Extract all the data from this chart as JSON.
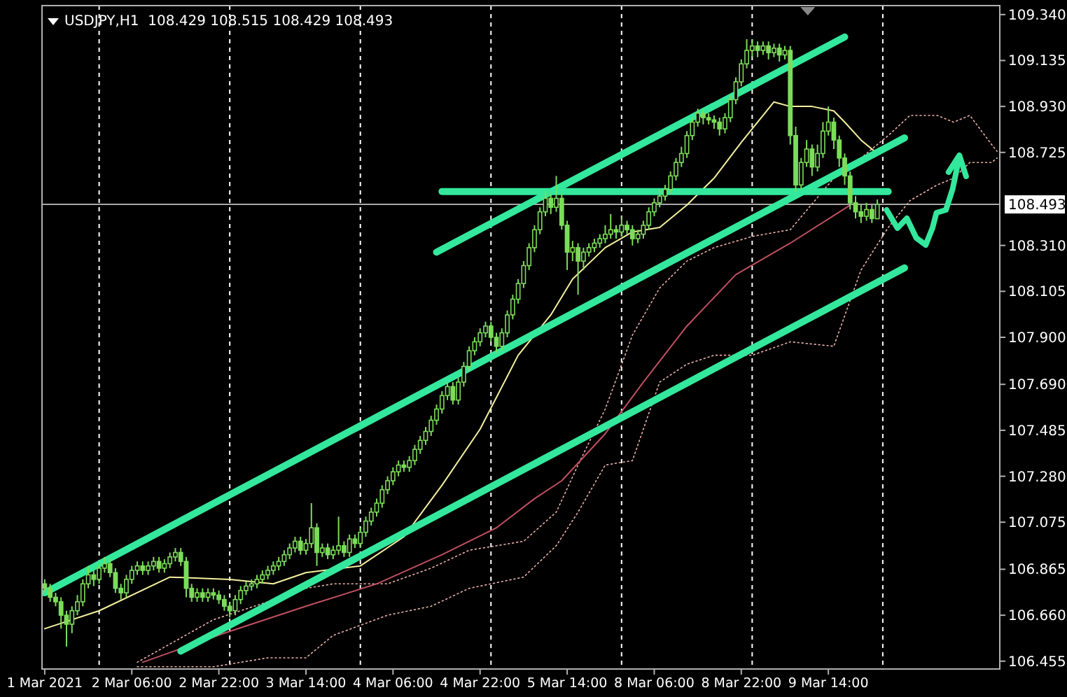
{
  "chart_data": {
    "type": "candlestick",
    "title": "USDJPY,H1  108.429 108.515 108.429 108.493",
    "color": "#7cdc5a",
    "categories": [
      "1 Mar 2021",
      null,
      null,
      null,
      null,
      null,
      null,
      null,
      null,
      null,
      null,
      null,
      null,
      null,
      null,
      null,
      "2 Mar 06:00",
      null,
      null,
      null,
      null,
      null,
      null,
      null,
      null,
      null,
      null,
      null,
      null,
      null,
      null,
      null,
      "2 Mar 22:00",
      null,
      null,
      null,
      null,
      null,
      null,
      null,
      null,
      null,
      null,
      null,
      null,
      null,
      null,
      null,
      "3 Mar 14:00",
      null,
      null,
      null,
      null,
      null,
      null,
      null,
      null,
      null,
      null,
      null,
      null,
      null,
      null,
      null,
      "4 Mar 06:00",
      null,
      null,
      null,
      null,
      null,
      null,
      null,
      null,
      null,
      null,
      null,
      null,
      null,
      null,
      null,
      "4 Mar 22:00",
      null,
      null,
      null,
      null,
      null,
      null,
      null,
      null,
      null,
      null,
      null,
      null,
      null,
      null,
      null,
      "5 Mar 14:00",
      null,
      null,
      null,
      null,
      null,
      null,
      null,
      null,
      null,
      null,
      null,
      null,
      null,
      null,
      null,
      "8 Mar 06:00",
      null,
      null,
      null,
      null,
      null,
      null,
      null,
      null,
      null,
      null,
      null,
      null,
      null,
      null,
      null,
      "8 Mar 22:00",
      null,
      null,
      null,
      null,
      null,
      null,
      null,
      null,
      null,
      null,
      null,
      null,
      null,
      null,
      null,
      "9 Mar 14:00",
      null,
      null,
      null,
      null,
      null,
      null,
      null,
      null,
      null,
      null,
      null,
      null,
      null,
      null,
      null,
      null,
      null,
      null,
      null,
      null,
      null,
      null,
      null,
      null,
      null,
      null,
      null,
      null,
      null,
      null,
      null
    ],
    "ylim": [
      106.42,
      109.38
    ],
    "yticks": [
      {
        "value": 109.34,
        "label": "109.340"
      },
      {
        "value": 109.135,
        "label": "109.135"
      },
      {
        "value": 108.93,
        "label": "108.930"
      },
      {
        "value": 108.725,
        "label": "108.725"
      },
      {
        "value": 108.31,
        "label": "108.310"
      },
      {
        "value": 108.105,
        "label": "108.105"
      },
      {
        "value": 107.9,
        "label": "107.900"
      },
      {
        "value": 107.69,
        "label": "107.690"
      },
      {
        "value": 107.485,
        "label": "107.485"
      },
      {
        "value": 107.28,
        "label": "107.280"
      },
      {
        "value": 107.075,
        "label": "107.075"
      },
      {
        "value": 106.865,
        "label": "106.865"
      },
      {
        "value": 106.66,
        "label": "106.660"
      },
      {
        "value": 106.455,
        "label": "106.455"
      }
    ],
    "ohlc": [
      [
        106.8,
        106.82,
        106.76,
        106.78
      ],
      [
        106.78,
        106.8,
        106.72,
        106.74
      ],
      [
        106.74,
        106.76,
        106.7,
        106.72
      ],
      [
        106.72,
        106.74,
        106.6,
        106.66
      ],
      [
        106.66,
        106.68,
        106.52,
        106.62
      ],
      [
        106.62,
        106.7,
        106.58,
        106.68
      ],
      [
        106.68,
        106.75,
        106.66,
        106.72
      ],
      [
        106.72,
        106.82,
        106.7,
        106.8
      ],
      [
        106.8,
        106.88,
        106.78,
        106.84
      ],
      [
        106.84,
        106.86,
        106.79,
        106.82
      ],
      [
        106.82,
        106.89,
        106.8,
        106.87
      ],
      [
        106.87,
        106.92,
        106.85,
        106.89
      ],
      [
        106.89,
        106.91,
        106.83,
        106.85
      ],
      [
        106.85,
        106.87,
        106.76,
        106.78
      ],
      [
        106.78,
        106.8,
        106.73,
        106.76
      ],
      [
        106.76,
        106.84,
        106.74,
        106.82
      ],
      [
        106.82,
        106.88,
        106.8,
        106.86
      ],
      [
        106.86,
        106.9,
        106.84,
        106.88
      ],
      [
        106.88,
        106.9,
        106.84,
        106.86
      ],
      [
        106.86,
        106.9,
        106.84,
        106.88
      ],
      [
        106.88,
        106.92,
        106.86,
        106.9
      ],
      [
        106.9,
        106.92,
        106.85,
        106.87
      ],
      [
        106.87,
        106.91,
        106.85,
        106.89
      ],
      [
        106.89,
        106.94,
        106.87,
        106.92
      ],
      [
        106.92,
        106.96,
        106.9,
        106.94
      ],
      [
        106.94,
        106.96,
        106.88,
        106.9
      ],
      [
        106.9,
        106.92,
        106.74,
        106.78
      ],
      [
        106.78,
        106.8,
        106.72,
        106.74
      ],
      [
        106.74,
        106.78,
        106.72,
        106.76
      ],
      [
        106.76,
        106.78,
        106.72,
        106.74
      ],
      [
        106.74,
        106.78,
        106.72,
        106.76
      ],
      [
        106.76,
        106.78,
        106.73,
        106.75
      ],
      [
        106.75,
        106.77,
        106.71,
        106.73
      ],
      [
        106.73,
        106.75,
        106.68,
        106.7
      ],
      [
        106.7,
        106.72,
        106.65,
        106.68
      ],
      [
        106.68,
        106.75,
        106.66,
        106.73
      ],
      [
        106.73,
        106.79,
        106.71,
        106.77
      ],
      [
        106.77,
        106.81,
        106.75,
        106.79
      ],
      [
        106.79,
        106.82,
        106.77,
        106.8
      ],
      [
        106.8,
        106.84,
        106.78,
        106.82
      ],
      [
        106.82,
        106.86,
        106.8,
        106.84
      ],
      [
        106.84,
        106.88,
        106.82,
        106.86
      ],
      [
        106.86,
        106.9,
        106.84,
        106.88
      ],
      [
        106.88,
        106.92,
        106.86,
        106.9
      ],
      [
        106.9,
        106.95,
        106.88,
        106.93
      ],
      [
        106.93,
        106.98,
        106.91,
        106.96
      ],
      [
        106.96,
        107.01,
        106.94,
        106.99
      ],
      [
        106.99,
        107.01,
        106.93,
        106.95
      ],
      [
        106.95,
        107.0,
        106.93,
        106.98
      ],
      [
        106.98,
        107.16,
        106.96,
        107.05
      ],
      [
        107.05,
        107.07,
        106.88,
        106.94
      ],
      [
        106.94,
        106.98,
        106.92,
        106.96
      ],
      [
        106.96,
        106.98,
        106.91,
        106.93
      ],
      [
        106.93,
        106.97,
        106.91,
        106.95
      ],
      [
        106.95,
        107.1,
        106.93,
        106.97
      ],
      [
        106.97,
        106.99,
        106.92,
        106.94
      ],
      [
        106.94,
        107.02,
        106.92,
        107.0
      ],
      [
        107.0,
        107.02,
        106.96,
        106.98
      ],
      [
        106.98,
        107.05,
        106.96,
        107.03
      ],
      [
        107.03,
        107.1,
        107.01,
        107.08
      ],
      [
        107.08,
        107.14,
        107.06,
        107.12
      ],
      [
        107.12,
        107.18,
        107.1,
        107.16
      ],
      [
        107.16,
        107.24,
        107.14,
        107.22
      ],
      [
        107.22,
        107.28,
        107.2,
        107.26
      ],
      [
        107.26,
        107.32,
        107.24,
        107.3
      ],
      [
        107.3,
        107.35,
        107.28,
        107.33
      ],
      [
        107.33,
        107.35,
        107.3,
        107.32
      ],
      [
        107.32,
        107.37,
        107.3,
        107.35
      ],
      [
        107.35,
        107.42,
        107.33,
        107.4
      ],
      [
        107.4,
        107.46,
        107.38,
        107.44
      ],
      [
        107.44,
        107.5,
        107.42,
        107.48
      ],
      [
        107.48,
        107.55,
        107.46,
        107.53
      ],
      [
        107.53,
        107.6,
        107.51,
        107.58
      ],
      [
        107.58,
        107.66,
        107.56,
        107.64
      ],
      [
        107.64,
        107.7,
        107.62,
        107.68
      ],
      [
        107.68,
        107.7,
        107.6,
        107.62
      ],
      [
        107.62,
        107.72,
        107.6,
        107.7
      ],
      [
        107.7,
        107.79,
        107.68,
        107.77
      ],
      [
        107.77,
        107.86,
        107.75,
        107.84
      ],
      [
        107.84,
        107.9,
        107.82,
        107.88
      ],
      [
        107.88,
        107.94,
        107.86,
        107.92
      ],
      [
        107.92,
        107.97,
        107.9,
        107.95
      ],
      [
        107.95,
        107.97,
        107.88,
        107.9
      ],
      [
        107.9,
        107.92,
        107.83,
        107.86
      ],
      [
        107.86,
        107.94,
        107.84,
        107.92
      ],
      [
        107.92,
        108.02,
        107.9,
        108.0
      ],
      [
        108.0,
        108.09,
        107.98,
        108.07
      ],
      [
        108.07,
        108.16,
        108.05,
        108.14
      ],
      [
        108.14,
        108.24,
        108.12,
        108.22
      ],
      [
        108.22,
        108.32,
        108.2,
        108.3
      ],
      [
        108.3,
        108.4,
        108.28,
        108.38
      ],
      [
        108.38,
        108.48,
        108.36,
        108.46
      ],
      [
        108.46,
        108.55,
        108.44,
        108.52
      ],
      [
        108.52,
        108.54,
        108.45,
        108.48
      ],
      [
        108.48,
        108.62,
        108.46,
        108.52
      ],
      [
        108.52,
        108.54,
        108.38,
        108.4
      ],
      [
        108.4,
        108.42,
        108.2,
        108.28
      ],
      [
        108.28,
        108.33,
        108.24,
        108.3
      ],
      [
        108.3,
        108.32,
        108.09,
        108.24
      ],
      [
        108.24,
        108.3,
        108.2,
        108.28
      ],
      [
        108.28,
        108.32,
        108.26,
        108.3
      ],
      [
        108.3,
        108.34,
        108.28,
        108.32
      ],
      [
        108.32,
        108.36,
        108.3,
        108.34
      ],
      [
        108.34,
        108.4,
        108.32,
        108.36
      ],
      [
        108.36,
        108.45,
        108.34,
        108.38
      ],
      [
        108.38,
        108.4,
        108.34,
        108.37
      ],
      [
        108.37,
        108.44,
        108.35,
        108.4
      ],
      [
        108.4,
        108.42,
        108.36,
        108.38
      ],
      [
        108.38,
        108.4,
        108.31,
        108.34
      ],
      [
        108.34,
        108.38,
        108.32,
        108.36
      ],
      [
        108.36,
        108.42,
        108.34,
        108.4
      ],
      [
        108.4,
        108.48,
        108.38,
        108.46
      ],
      [
        108.46,
        108.52,
        108.44,
        108.5
      ],
      [
        108.5,
        108.56,
        108.48,
        108.53
      ],
      [
        108.53,
        108.58,
        108.51,
        108.56
      ],
      [
        108.56,
        108.64,
        108.54,
        108.62
      ],
      [
        108.62,
        108.7,
        108.6,
        108.68
      ],
      [
        108.68,
        108.75,
        108.66,
        108.72
      ],
      [
        108.72,
        108.82,
        108.7,
        108.8
      ],
      [
        108.8,
        108.88,
        108.78,
        108.86
      ],
      [
        108.86,
        108.92,
        108.84,
        108.9
      ],
      [
        108.9,
        108.92,
        108.85,
        108.88
      ],
      [
        108.88,
        108.9,
        108.85,
        108.87
      ],
      [
        108.87,
        108.89,
        108.83,
        108.86
      ],
      [
        108.86,
        108.88,
        108.8,
        108.83
      ],
      [
        108.83,
        108.9,
        108.81,
        108.88
      ],
      [
        108.88,
        108.98,
        108.86,
        108.96
      ],
      [
        108.96,
        109.06,
        108.94,
        109.04
      ],
      [
        109.04,
        109.14,
        109.02,
        109.12
      ],
      [
        109.12,
        109.23,
        109.1,
        109.18
      ],
      [
        109.18,
        109.23,
        109.15,
        109.2
      ],
      [
        109.2,
        109.22,
        109.15,
        109.18
      ],
      [
        109.18,
        109.22,
        109.16,
        109.2
      ],
      [
        109.2,
        109.22,
        109.14,
        109.17
      ],
      [
        109.17,
        109.21,
        109.15,
        109.19
      ],
      [
        109.19,
        109.21,
        109.13,
        109.16
      ],
      [
        109.16,
        109.2,
        109.14,
        109.18
      ],
      [
        109.18,
        109.2,
        108.76,
        108.8
      ],
      [
        108.8,
        108.84,
        108.55,
        108.58
      ],
      [
        108.58,
        108.7,
        108.56,
        108.68
      ],
      [
        108.68,
        108.78,
        108.66,
        108.74
      ],
      [
        108.74,
        108.76,
        108.62,
        108.66
      ],
      [
        108.66,
        108.76,
        108.64,
        108.72
      ],
      [
        108.72,
        108.86,
        108.7,
        108.82
      ],
      [
        108.82,
        108.93,
        108.8,
        108.86
      ],
      [
        108.86,
        108.88,
        108.74,
        108.78
      ],
      [
        108.78,
        108.8,
        108.66,
        108.7
      ],
      [
        108.7,
        108.72,
        108.58,
        108.62
      ],
      [
        108.62,
        108.64,
        108.47,
        108.5
      ],
      [
        108.5,
        108.53,
        108.43,
        108.46
      ],
      [
        108.46,
        108.49,
        108.41,
        108.44
      ],
      [
        108.44,
        108.5,
        108.42,
        108.47
      ],
      [
        108.47,
        108.49,
        108.41,
        108.43
      ],
      [
        108.429,
        108.515,
        108.429,
        108.493
      ],
      null,
      null,
      null,
      null,
      null,
      null,
      null,
      null,
      null,
      null,
      null,
      null,
      null,
      null,
      null,
      null,
      null,
      null,
      null,
      null,
      null,
      null
    ],
    "ref_lines": [
      {
        "axis": "y",
        "value": 108.493,
        "label": "108.493",
        "color": "#a8a8a8",
        "line_style": "solid"
      }
    ],
    "series": [
      {
        "type": "line",
        "line_style": "dotted",
        "color": "#e8b0a8",
        "values": [
          null,
          null,
          null,
          null,
          null,
          null,
          null,
          null,
          null,
          null,
          null,
          null,
          null,
          null,
          null,
          null,
          null,
          106.45,
          null,
          null,
          null,
          null,
          null,
          null,
          null,
          null,
          null,
          null,
          null,
          null,
          null,
          106.64,
          null,
          null,
          null,
          null,
          null,
          null,
          null,
          null,
          null,
          106.72,
          null,
          null,
          null,
          null,
          null,
          null,
          106.78,
          null,
          null,
          null,
          null,
          106.8,
          null,
          null,
          null,
          null,
          null,
          null,
          null,
          null,
          null,
          106.8,
          null,
          null,
          null,
          null,
          null,
          null,
          null,
          106.87,
          null,
          null,
          null,
          null,
          null,
          null,
          106.95,
          null,
          null,
          null,
          null,
          null,
          null,
          null,
          null,
          null,
          106.99,
          null,
          null,
          null,
          null,
          null,
          107.12,
          null,
          null,
          null,
          107.33,
          null,
          null,
          null,
          null,
          107.58,
          null,
          null,
          null,
          null,
          107.91,
          null,
          null,
          null,
          null,
          108.12,
          null,
          null,
          null,
          null,
          108.24,
          null,
          null,
          null,
          null,
          108.3,
          null,
          null,
          null,
          null,
          null,
          null,
          108.35,
          null,
          null,
          null,
          null,
          null,
          null,
          108.38,
          null,
          null,
          null,
          null,
          null,
          null,
          null,
          108.61,
          null,
          null,
          null,
          null,
          108.7,
          null,
          null,
          null,
          null,
          108.8,
          null,
          null,
          null,
          108.89,
          null,
          null,
          null,
          null,
          108.89,
          null,
          null,
          108.86,
          null,
          null,
          108.89,
          null,
          null,
          null,
          108.76,
          108.73
        ]
      },
      {
        "type": "line",
        "line_style": "dotted",
        "color": "#e8b0a8",
        "values": [
          null,
          null,
          null,
          null,
          null,
          null,
          null,
          null,
          null,
          null,
          null,
          null,
          null,
          null,
          null,
          null,
          null,
          106.43,
          null,
          null,
          null,
          null,
          null,
          null,
          null,
          null,
          null,
          null,
          null,
          null,
          null,
          106.43,
          null,
          null,
          null,
          null,
          null,
          null,
          null,
          null,
          null,
          106.47,
          null,
          null,
          null,
          null,
          null,
          null,
          106.47,
          null,
          null,
          null,
          null,
          106.57,
          null,
          null,
          null,
          null,
          null,
          null,
          null,
          null,
          null,
          106.66,
          null,
          null,
          null,
          null,
          null,
          null,
          null,
          106.7,
          null,
          null,
          null,
          null,
          null,
          null,
          106.78,
          null,
          null,
          null,
          null,
          null,
          null,
          null,
          null,
          null,
          106.83,
          null,
          null,
          null,
          null,
          null,
          106.97,
          null,
          null,
          null,
          107.12,
          null,
          null,
          null,
          null,
          107.33,
          null,
          null,
          null,
          null,
          107.35,
          null,
          null,
          null,
          null,
          107.7,
          null,
          null,
          null,
          null,
          107.78,
          null,
          null,
          null,
          null,
          107.82,
          null,
          null,
          null,
          null,
          null,
          null,
          107.82,
          null,
          null,
          null,
          null,
          null,
          null,
          107.88,
          null,
          null,
          null,
          null,
          null,
          null,
          null,
          107.86,
          null,
          null,
          null,
          null,
          108.2,
          null,
          null,
          null,
          null,
          108.39,
          null,
          null,
          null,
          108.51,
          null,
          null,
          null,
          null,
          108.58,
          null,
          null,
          108.61,
          null,
          null,
          108.68,
          null,
          null,
          null,
          108.68,
          108.7
        ]
      },
      {
        "type": "line",
        "color": "#f5f0a0",
        "values": [
          106.6,
          null,
          null,
          null,
          null,
          null,
          null,
          null,
          null,
          null,
          106.68,
          null,
          null,
          null,
          null,
          null,
          null,
          null,
          null,
          null,
          null,
          null,
          null,
          106.83,
          null,
          null,
          null,
          null,
          null,
          null,
          null,
          null,
          null,
          null,
          106.82,
          null,
          null,
          null,
          null,
          null,
          null,
          null,
          106.8,
          null,
          null,
          null,
          null,
          null,
          106.85,
          null,
          null,
          null,
          null,
          null,
          null,
          null,
          null,
          null,
          106.88,
          null,
          null,
          null,
          null,
          null,
          null,
          null,
          107.01,
          null,
          null,
          null,
          null,
          null,
          null,
          107.24,
          null,
          null,
          null,
          null,
          null,
          null,
          107.49,
          null,
          null,
          null,
          null,
          null,
          null,
          107.82,
          null,
          null,
          null,
          null,
          null,
          108.0,
          null,
          null,
          null,
          108.16,
          null,
          null,
          null,
          null,
          null,
          108.3,
          null,
          null,
          null,
          null,
          108.37,
          null,
          null,
          null,
          null,
          108.39,
          null,
          null,
          null,
          null,
          108.49,
          null,
          null,
          null,
          null,
          108.61,
          null,
          null,
          null,
          null,
          108.77,
          null,
          null,
          null,
          null,
          null,
          108.95,
          null,
          null,
          108.93,
          null,
          null,
          null,
          108.93,
          null,
          null,
          null,
          108.91,
          null,
          108.86,
          null,
          null,
          108.78,
          null,
          null,
          108.72,
          null,
          null,
          null,
          null,
          null,
          null,
          null,
          null,
          null,
          null,
          null,
          null,
          null,
          null,
          null,
          null,
          null,
          null,
          null,
          null,
          null,
          null
        ]
      },
      {
        "type": "line",
        "color": "#c05060",
        "values": [
          null,
          null,
          null,
          null,
          null,
          null,
          null,
          null,
          null,
          null,
          null,
          null,
          null,
          null,
          null,
          null,
          null,
          null,
          106.45,
          null,
          null,
          null,
          null,
          null,
          null,
          null,
          null,
          null,
          null,
          null,
          null,
          null,
          null,
          106.58,
          null,
          null,
          null,
          null,
          null,
          null,
          null,
          null,
          null,
          null,
          null,
          null,
          null,
          null,
          106.7,
          null,
          null,
          null,
          null,
          null,
          null,
          null,
          null,
          null,
          null,
          null,
          null,
          106.8,
          null,
          null,
          null,
          null,
          null,
          null,
          null,
          null,
          null,
          null,
          null,
          106.93,
          null,
          null,
          null,
          null,
          null,
          null,
          null,
          null,
          null,
          107.05,
          null,
          null,
          null,
          null,
          null,
          null,
          107.18,
          null,
          null,
          null,
          null,
          107.26,
          null,
          null,
          null,
          null,
          null,
          null,
          null,
          107.47,
          null,
          null,
          null,
          null,
          null,
          null,
          107.7,
          null,
          null,
          null,
          null,
          null,
          null,
          null,
          107.95,
          null,
          null,
          null,
          null,
          null,
          null,
          null,
          null,
          108.18,
          null,
          null,
          null,
          null,
          null,
          null,
          null,
          null,
          null,
          108.32,
          null,
          null,
          null,
          null,
          null,
          null,
          null,
          null,
          null,
          null,
          108.49,
          null,
          null,
          null,
          null,
          null,
          null,
          null,
          null,
          null,
          null,
          null,
          null,
          null,
          null,
          null,
          null,
          null,
          null,
          null,
          null,
          null,
          null,
          null,
          null,
          null,
          null,
          null
        ]
      },
      {
        "type": "line",
        "color": "#33e89c",
        "values": [
          106.76,
          null,
          null,
          null,
          null,
          null,
          null,
          null,
          null,
          null,
          null,
          null,
          null,
          null,
          null,
          null,
          null,
          null,
          null,
          null,
          null,
          null,
          null,
          null,
          null,
          null,
          null,
          null,
          null,
          null,
          null,
          null,
          null,
          null,
          null,
          null,
          null,
          null,
          null,
          null,
          null,
          null,
          null,
          null,
          null,
          null,
          null,
          null,
          null,
          null,
          null,
          null,
          null,
          null,
          null,
          null,
          null,
          null,
          null,
          null,
          null,
          null,
          null,
          null,
          null,
          null,
          null,
          null,
          null,
          null,
          null,
          null,
          null,
          null,
          null,
          null,
          null,
          null,
          null,
          null,
          null,
          null,
          null,
          null,
          null,
          null,
          null,
          null,
          null,
          null,
          null,
          null,
          null,
          null,
          null,
          null,
          null,
          null,
          null,
          null,
          null,
          null,
          null,
          null,
          null,
          null,
          null,
          null,
          null,
          null,
          null,
          null,
          null,
          null,
          null,
          null,
          null,
          null,
          null,
          null,
          null,
          null,
          null,
          null,
          null,
          null,
          null,
          null,
          null,
          null,
          null,
          null,
          null,
          null,
          null,
          null,
          null,
          null,
          null,
          null,
          null,
          null,
          null,
          null,
          null,
          null,
          null,
          null,
          null,
          null,
          null,
          null,
          null,
          null,
          null,
          null,
          null,
          null,
          108.79,
          null,
          null,
          null,
          null,
          null,
          null,
          null,
          null,
          null,
          null,
          null,
          null,
          null,
          null,
          null,
          null,
          null
        ]
      },
      {
        "type": "line",
        "color": "#33e89c",
        "values": [
          null,
          null,
          null,
          null,
          null,
          null,
          null,
          null,
          null,
          null,
          null,
          null,
          null,
          null,
          null,
          null,
          null,
          null,
          null,
          null,
          null,
          null,
          null,
          null,
          null,
          106.5,
          null,
          null,
          null,
          null,
          null,
          null,
          null,
          null,
          null,
          null,
          null,
          null,
          null,
          null,
          null,
          null,
          null,
          null,
          null,
          null,
          null,
          null,
          null,
          null,
          null,
          null,
          null,
          null,
          null,
          null,
          null,
          null,
          null,
          null,
          null,
          null,
          null,
          null,
          null,
          null,
          null,
          null,
          null,
          null,
          null,
          null,
          null,
          null,
          null,
          null,
          null,
          null,
          null,
          null,
          null,
          null,
          null,
          null,
          null,
          null,
          null,
          null,
          null,
          null,
          null,
          null,
          null,
          null,
          null,
          null,
          null,
          null,
          null,
          null,
          null,
          null,
          null,
          null,
          null,
          null,
          null,
          null,
          null,
          null,
          null,
          null,
          null,
          null,
          null,
          null,
          null,
          null,
          null,
          null,
          null,
          null,
          null,
          null,
          null,
          null,
          null,
          null,
          null,
          null,
          null,
          null,
          null,
          null,
          null,
          null,
          null,
          null,
          null,
          null,
          null,
          null,
          null,
          null,
          null,
          null,
          null,
          null,
          null,
          null,
          null,
          null,
          null,
          null,
          null,
          null,
          null,
          null,
          108.21,
          null,
          null,
          null,
          null,
          null,
          null,
          null,
          null,
          null,
          null,
          null,
          null,
          null,
          null,
          null,
          null,
          null
        ]
      },
      {
        "type": "line",
        "color": "#33e89c",
        "values": [
          null,
          null,
          null,
          null,
          null,
          null,
          null,
          null,
          null,
          null,
          null,
          null,
          null,
          null,
          null,
          null,
          null,
          null,
          null,
          null,
          null,
          null,
          null,
          null,
          null,
          null,
          null,
          null,
          null,
          null,
          null,
          null,
          null,
          null,
          null,
          null,
          null,
          null,
          null,
          null,
          null,
          null,
          null,
          null,
          null,
          null,
          null,
          null,
          null,
          null,
          null,
          null,
          null,
          null,
          null,
          null,
          null,
          null,
          null,
          null,
          null,
          null,
          null,
          null,
          null,
          null,
          null,
          null,
          null,
          null,
          null,
          null,
          108.28,
          null,
          null,
          null,
          null,
          null,
          null,
          null,
          null,
          null,
          null,
          null,
          null,
          null,
          null,
          null,
          null,
          null,
          null,
          null,
          null,
          null,
          null,
          null,
          null,
          null,
          null,
          null,
          null,
          null,
          null,
          null,
          null,
          null,
          null,
          null,
          null,
          null,
          null,
          null,
          null,
          null,
          null,
          null,
          null,
          null,
          null,
          null,
          null,
          null,
          null,
          null,
          null,
          null,
          null,
          null,
          null,
          null,
          null,
          null,
          null,
          null,
          null,
          null,
          null,
          null,
          null,
          null,
          null,
          null,
          null,
          null,
          null,
          null,
          null,
          109.24,
          null,
          null,
          null,
          null,
          null,
          null,
          null,
          null,
          null,
          null,
          null,
          null,
          null,
          null,
          null,
          null,
          null,
          null,
          null,
          null,
          null,
          null,
          null,
          null,
          null,
          null,
          null,
          null
        ]
      },
      {
        "type": "line",
        "color": "#33e89c",
        "values": [
          null,
          null,
          null,
          null,
          null,
          null,
          null,
          null,
          null,
          null,
          null,
          null,
          null,
          null,
          null,
          null,
          null,
          null,
          null,
          null,
          null,
          null,
          null,
          null,
          null,
          null,
          null,
          null,
          null,
          null,
          null,
          null,
          null,
          null,
          null,
          null,
          null,
          null,
          null,
          null,
          null,
          null,
          null,
          null,
          null,
          null,
          null,
          null,
          null,
          null,
          null,
          null,
          null,
          null,
          null,
          null,
          null,
          null,
          null,
          null,
          null,
          null,
          null,
          null,
          null,
          null,
          null,
          null,
          null,
          null,
          null,
          null,
          null,
          108.55,
          null,
          null,
          null,
          null,
          null,
          null,
          null,
          null,
          null,
          null,
          null,
          null,
          null,
          null,
          null,
          null,
          null,
          null,
          null,
          null,
          null,
          null,
          null,
          null,
          null,
          null,
          null,
          null,
          null,
          null,
          null,
          null,
          null,
          null,
          null,
          null,
          null,
          null,
          null,
          null,
          null,
          null,
          null,
          null,
          null,
          null,
          null,
          null,
          null,
          null,
          null,
          null,
          null,
          null,
          null,
          null,
          null,
          null,
          null,
          null,
          null,
          null,
          null,
          null,
          null,
          null,
          null,
          null,
          null,
          null,
          null,
          null,
          null,
          null,
          null,
          null,
          null,
          null,
          null,
          null,
          null,
          108.55,
          null,
          null,
          null,
          null,
          null,
          null,
          null,
          null,
          null,
          null,
          null,
          null,
          null,
          null,
          null,
          null,
          null,
          null,
          null,
          null
        ]
      }
    ]
  }
}
